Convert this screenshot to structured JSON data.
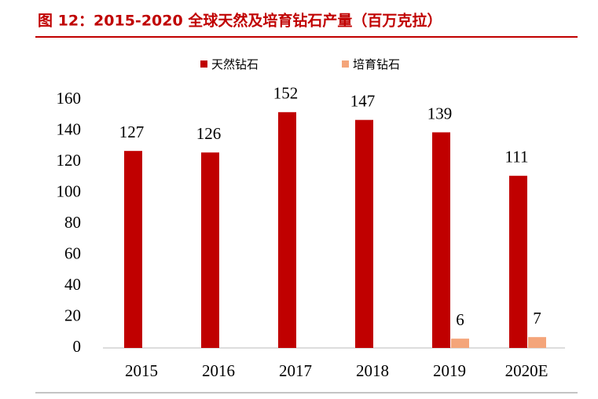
{
  "chart_data": {
    "type": "bar",
    "title": "图 12：2015-2020 全球天然及培育钻石产量（百万克拉）",
    "categories": [
      "2015",
      "2016",
      "2017",
      "2018",
      "2019",
      "2020E"
    ],
    "series": [
      {
        "name": "天然钻石",
        "color": "#c00000",
        "values": [
          127,
          126,
          152,
          147,
          139,
          111
        ]
      },
      {
        "name": "培育钻石",
        "color": "#f4a57a",
        "values": [
          null,
          null,
          null,
          null,
          6,
          7
        ]
      }
    ],
    "ylim": [
      0,
      160
    ],
    "yticks": [
      0,
      20,
      40,
      60,
      80,
      100,
      120,
      140,
      160
    ],
    "legend": "top"
  }
}
